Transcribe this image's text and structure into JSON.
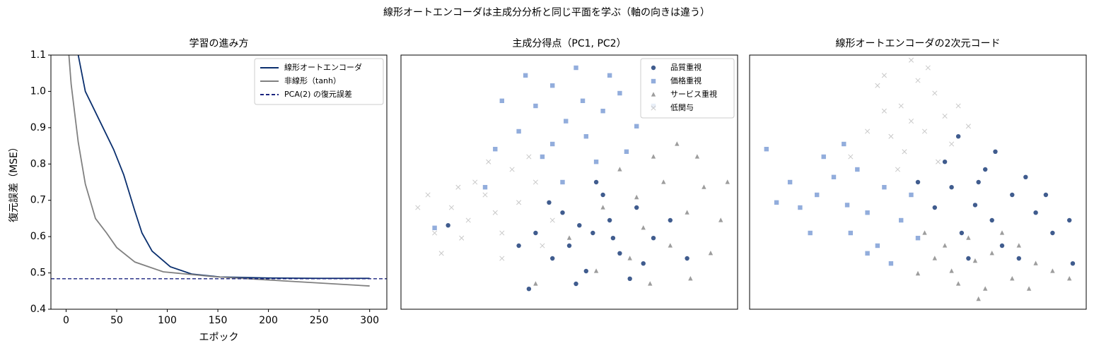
{
  "suptitle": "線形オートエンコーダは主成分分析と同じ平面を学ぶ（軸の向きは違う）",
  "chart_data": [
    {
      "type": "line",
      "title": "学習の進み方",
      "xlabel": "エポック",
      "ylabel": "復元誤差（MSE）",
      "xlim": [
        -15,
        317
      ],
      "ylim": [
        0.4,
        1.1
      ],
      "xticks": [
        0,
        50,
        100,
        150,
        200,
        250,
        300
      ],
      "yticks": [
        0.4,
        0.5,
        0.6,
        0.7,
        0.8,
        0.9,
        {
          "value": 1,
          "label": "1.0"
        },
        1.1
      ],
      "legend": "upper right",
      "series": [
        {
          "name": "線形オートエンコーダ",
          "color": "#0a2f6e",
          "x": [
            0,
            12,
            19,
            33,
            47,
            57,
            68,
            75,
            85,
            103,
            124,
            152,
            200,
            250,
            300
          ],
          "values": [
            1.3,
            1.1,
            1.0,
            0.92,
            0.84,
            0.77,
            0.67,
            0.61,
            0.56,
            0.517,
            0.497,
            0.489,
            0.486,
            0.485,
            0.485
          ]
        },
        {
          "name": "非線形（tanh）",
          "color": "#808080",
          "x": [
            0,
            5,
            12,
            19,
            29,
            40,
            50,
            68,
            96,
            145,
            215,
            300
          ],
          "values": [
            1.2,
            1.02,
            0.86,
            0.745,
            0.65,
            0.61,
            0.57,
            0.53,
            0.503,
            0.49,
            0.478,
            0.464
          ]
        }
      ],
      "hlines": [
        {
          "name": "PCA(2) の復元誤差",
          "y": 0.484,
          "color": "#1a237e",
          "style": "dashed"
        }
      ]
    },
    {
      "type": "scatter",
      "title": "主成分得点（PC1, PC2）",
      "xlim": [
        0,
        100
      ],
      "ylim": [
        0,
        100
      ],
      "legend": "upper right",
      "series": [
        {
          "name": "品質重視",
          "color": "#1f3f7a",
          "marker": "o",
          "x": [
            57,
            50,
            62,
            45,
            70,
            55,
            65,
            48,
            75,
            40,
            60,
            52,
            68,
            35,
            80,
            58,
            44,
            72,
            63,
            53,
            14,
            85,
            38
          ],
          "values": [
            30,
            25,
            35,
            20,
            40,
            15,
            22,
            38,
            28,
            30,
            45,
            10,
            12,
            25,
            35,
            50,
            42,
            18,
            28,
            33,
            33,
            20,
            8
          ]
        },
        {
          "name": "価格重視",
          "color": "#7f9fd6",
          "marker": "s",
          "x": [
            49,
            40,
            55,
            45,
            60,
            35,
            52,
            65,
            42,
            58,
            30,
            70,
            48,
            28,
            75,
            37,
            62,
            54,
            45,
            67,
            10,
            25
          ],
          "values": [
            74,
            80,
            68,
            88,
            78,
            70,
            95,
            85,
            60,
            58,
            82,
            72,
            50,
            63,
            80,
            92,
            92,
            82,
            65,
            62,
            32,
            48
          ]
        },
        {
          "name": "サービス重視",
          "color": "#8c8c8c",
          "marker": "^",
          "x": [
            70,
            78,
            85,
            65,
            80,
            90,
            72,
            60,
            88,
            75,
            95,
            68,
            82,
            58,
            92,
            40,
            50,
            97,
            74,
            86
          ],
          "values": [
            44,
            50,
            38,
            55,
            25,
            48,
            32,
            40,
            60,
            60,
            35,
            20,
            65,
            15,
            22,
            10,
            28,
            50,
            10,
            12
          ]
        },
        {
          "name": "低関与",
          "color": "#c8c8c8",
          "marker": "x",
          "x": [
            28,
            20,
            15,
            10,
            25,
            30,
            35,
            5,
            18,
            40,
            22,
            12,
            33,
            8,
            45,
            38,
            30,
            17,
            42,
            26
          ],
          "values": [
            38,
            35,
            40,
            30,
            45,
            30,
            42,
            40,
            28,
            50,
            50,
            22,
            55,
            45,
            35,
            60,
            20,
            48,
            25,
            58
          ]
        }
      ]
    },
    {
      "type": "scatter",
      "title": "線形オートエンコーダの2次元コード",
      "xlim": [
        0,
        100
      ],
      "ylim": [
        0,
        100
      ],
      "series": [
        {
          "name": "品質重視",
          "color": "#1f3f7a",
          "marker": "o",
          "x": [
            67,
            60,
            72,
            78,
            63,
            85,
            55,
            70,
            75,
            90,
            58,
            82,
            65,
            95,
            50,
            73,
            88,
            62,
            80,
            68,
            96
          ],
          "values": [
            41,
            48,
            35,
            45,
            30,
            38,
            40,
            55,
            25,
            30,
            58,
            52,
            20,
            35,
            50,
            62,
            45,
            68,
            20,
            50,
            18
          ]
        },
        {
          "name": "価格重視",
          "color": "#7f9fd6",
          "marker": "s",
          "x": [
            29,
            20,
            35,
            25,
            15,
            40,
            30,
            22,
            45,
            12,
            38,
            32,
            18,
            48,
            28,
            5,
            8,
            42,
            50,
            35
          ],
          "values": [
            41,
            45,
            38,
            52,
            40,
            48,
            30,
            60,
            35,
            50,
            25,
            55,
            30,
            45,
            65,
            63,
            42,
            18,
            28,
            22
          ]
        },
        {
          "name": "サービス重視",
          "color": "#8c8c8c",
          "marker": "^",
          "x": [
            67,
            60,
            72,
            78,
            65,
            55,
            85,
            70,
            62,
            80,
            90,
            58,
            75,
            68,
            50,
            95,
            83,
            52
          ],
          "values": [
            19,
            15,
            22,
            12,
            28,
            20,
            18,
            8,
            10,
            25,
            15,
            25,
            30,
            4,
            14,
            12,
            8,
            30
          ]
        },
        {
          "name": "低関与",
          "color": "#c8c8c8",
          "marker": "x",
          "x": [
            48,
            45,
            52,
            40,
            55,
            50,
            42,
            58,
            38,
            46,
            60,
            35,
            53,
            44,
            62,
            48,
            30,
            56,
            40,
            65
          ],
          "values": [
            74,
            80,
            70,
            78,
            85,
            90,
            68,
            76,
            88,
            62,
            65,
            70,
            95,
            55,
            80,
            98,
            60,
            58,
            92,
            72
          ]
        }
      ]
    }
  ]
}
